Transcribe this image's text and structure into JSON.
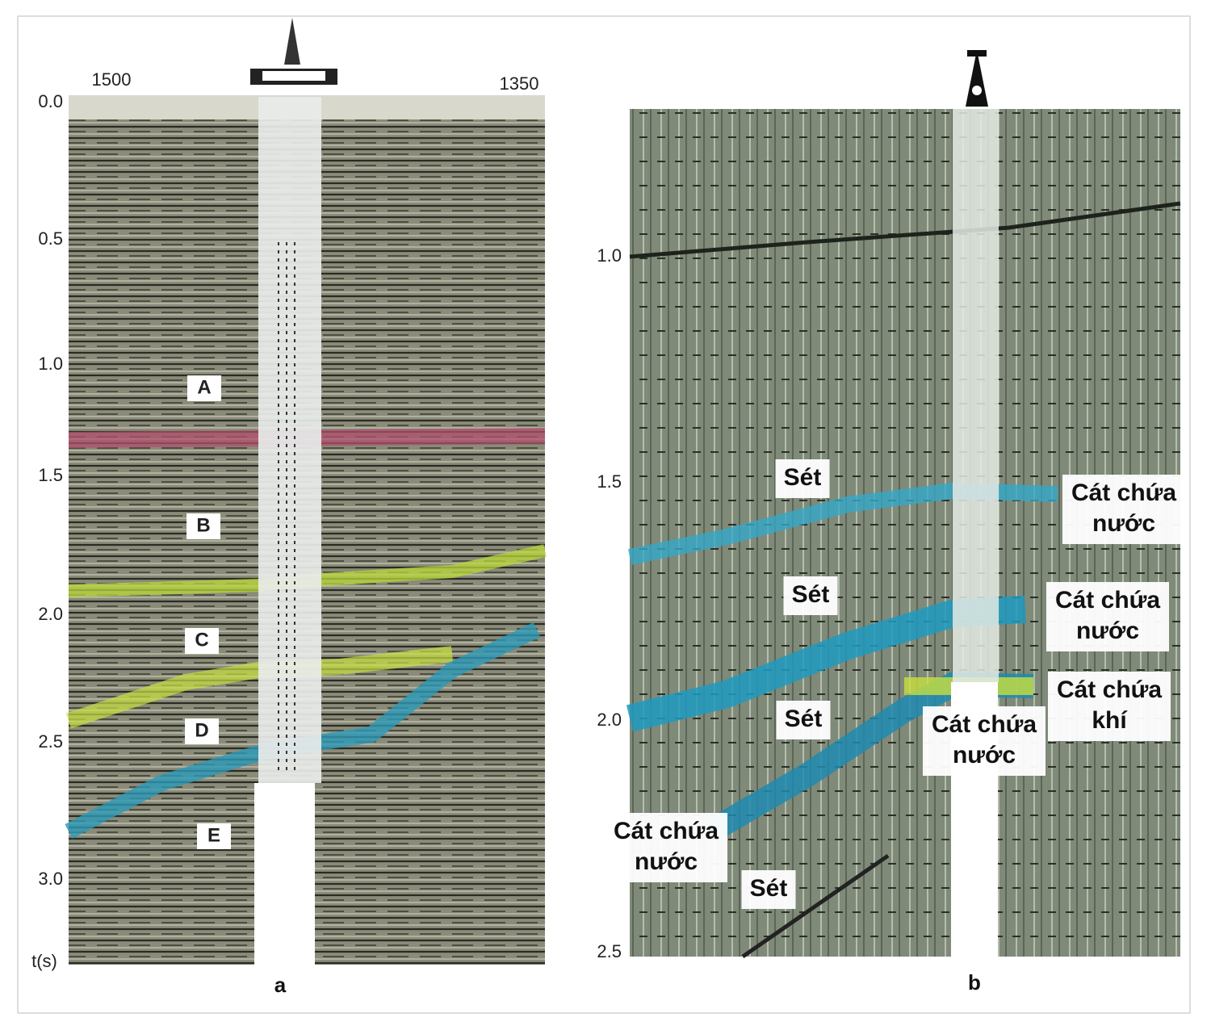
{
  "panel_a": {
    "caption": "a",
    "top_labels": [
      "1500",
      "1350"
    ],
    "time_ticks": [
      "0.0",
      "0.5",
      "1.0",
      "1.5",
      "2.0",
      "2.5",
      "3.0"
    ],
    "axis_label": "t(s)",
    "zones": [
      "A",
      "B",
      "C",
      "D",
      "E"
    ]
  },
  "panel_b": {
    "caption": "b",
    "time_ticks": [
      "1.0",
      "1.5",
      "2.0",
      "2.5"
    ],
    "labels": [
      {
        "lines": [
          "Sét"
        ]
      },
      {
        "lines": [
          "Cát chứa",
          "nước"
        ]
      },
      {
        "lines": [
          "Sét"
        ]
      },
      {
        "lines": [
          "Cát chứa",
          "nước"
        ]
      },
      {
        "lines": [
          "Cát chứa",
          "khí"
        ]
      },
      {
        "lines": [
          "Sét"
        ]
      },
      {
        "lines": [
          "Cát chứa",
          "nước"
        ]
      },
      {
        "lines": [
          "Cát chứa",
          "nước"
        ]
      },
      {
        "lines": [
          "Sét"
        ]
      }
    ]
  }
}
